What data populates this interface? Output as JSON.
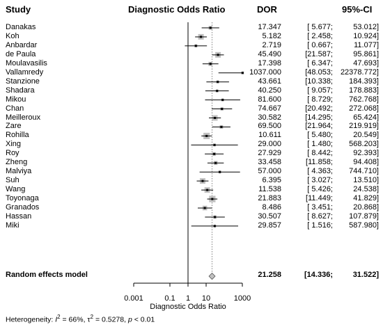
{
  "headers": {
    "study": "Study",
    "dor_title": "Diagnostic Odds Ratio",
    "dor": "DOR",
    "ci": "95%-CI"
  },
  "chart_data": {
    "type": "forest",
    "xscale": "log10",
    "xlim": [
      0.001,
      1000
    ],
    "xticks": [
      "0.001",
      "0.1",
      "1",
      "10",
      "1000"
    ],
    "xlabel": "Diagnostic Odds Ratio",
    "null_value": 1,
    "summary_value": 21.258,
    "studies": [
      {
        "name": "Danakas",
        "dor": 17.347,
        "lo": 5.677,
        "hi": 53.012,
        "dor_text": "17.347",
        "lo_text": "[ 5.677;",
        "hi_text": "53.012]"
      },
      {
        "name": "Koh",
        "dor": 5.182,
        "lo": 2.458,
        "hi": 10.924,
        "dor_text": "5.182",
        "lo_text": "[ 2.458;",
        "hi_text": "10.924]"
      },
      {
        "name": "Anbardar",
        "dor": 2.719,
        "lo": 0.667,
        "hi": 11.077,
        "dor_text": "2.719",
        "lo_text": "[ 0.667;",
        "hi_text": "11.077]"
      },
      {
        "name": "de Paula",
        "dor": 45.49,
        "lo": 21.587,
        "hi": 95.861,
        "dor_text": "45.490",
        "lo_text": "[21.587;",
        "hi_text": "95.861]"
      },
      {
        "name": "Moulavasilis",
        "dor": 17.398,
        "lo": 6.347,
        "hi": 47.693,
        "dor_text": "17.398",
        "lo_text": "[ 6.347;",
        "hi_text": "47.693]"
      },
      {
        "name": "Vallamredy",
        "dor": 1037.0,
        "lo": 48.053,
        "hi": 22378.772,
        "dor_text": "1037.000",
        "lo_text": "[48.053;",
        "hi_text": "22378.772]"
      },
      {
        "name": "Stanzione",
        "dor": 43.661,
        "lo": 10.338,
        "hi": 184.393,
        "dor_text": "43.661",
        "lo_text": "[10.338;",
        "hi_text": "184.393]"
      },
      {
        "name": "Shadara",
        "dor": 40.25,
        "lo": 9.057,
        "hi": 178.883,
        "dor_text": "40.250",
        "lo_text": "[ 9.057;",
        "hi_text": "178.883]"
      },
      {
        "name": "Mikou",
        "dor": 81.6,
        "lo": 8.729,
        "hi": 762.768,
        "dor_text": "81.600",
        "lo_text": "[ 8.729;",
        "hi_text": "762.768]"
      },
      {
        "name": "Chan",
        "dor": 74.667,
        "lo": 20.492,
        "hi": 272.068,
        "dor_text": "74.667",
        "lo_text": "[20.492;",
        "hi_text": "272.068]"
      },
      {
        "name": "Meilleroux",
        "dor": 30.582,
        "lo": 14.295,
        "hi": 65.424,
        "dor_text": "30.582",
        "lo_text": "[14.295;",
        "hi_text": "65.424]"
      },
      {
        "name": "Zare",
        "dor": 69.5,
        "lo": 21.964,
        "hi": 219.919,
        "dor_text": "69.500",
        "lo_text": "[21.964;",
        "hi_text": "219.919]"
      },
      {
        "name": "Rohilla",
        "dor": 10.611,
        "lo": 5.48,
        "hi": 20.549,
        "dor_text": "10.611",
        "lo_text": "[ 5.480;",
        "hi_text": "20.549]"
      },
      {
        "name": "Xing",
        "dor": 29.0,
        "lo": 1.48,
        "hi": 568.203,
        "dor_text": "29.000",
        "lo_text": "[ 1.480;",
        "hi_text": "568.203]"
      },
      {
        "name": "Roy",
        "dor": 27.929,
        "lo": 8.442,
        "hi": 92.393,
        "dor_text": "27.929",
        "lo_text": "[ 8.442;",
        "hi_text": "92.393]"
      },
      {
        "name": "Zheng",
        "dor": 33.458,
        "lo": 11.858,
        "hi": 94.408,
        "dor_text": "33.458",
        "lo_text": "[11.858;",
        "hi_text": "94.408]"
      },
      {
        "name": "Malviya",
        "dor": 57.0,
        "lo": 4.363,
        "hi": 744.71,
        "dor_text": "57.000",
        "lo_text": "[ 4.363;",
        "hi_text": "744.710]"
      },
      {
        "name": "Suh",
        "dor": 6.395,
        "lo": 3.027,
        "hi": 13.51,
        "dor_text": "6.395",
        "lo_text": "[ 3.027;",
        "hi_text": "13.510]"
      },
      {
        "name": "Wang",
        "dor": 11.538,
        "lo": 5.426,
        "hi": 24.538,
        "dor_text": "11.538",
        "lo_text": "[ 5.426;",
        "hi_text": "24.538]"
      },
      {
        "name": "Toyonaga",
        "dor": 21.883,
        "lo": 11.449,
        "hi": 41.829,
        "dor_text": "21.883",
        "lo_text": "[11.449;",
        "hi_text": "41.829]"
      },
      {
        "name": "Granados",
        "dor": 8.486,
        "lo": 3.451,
        "hi": 20.868,
        "dor_text": "8.486",
        "lo_text": "[ 3.451;",
        "hi_text": "20.868]"
      },
      {
        "name": "Hassan",
        "dor": 30.507,
        "lo": 8.627,
        "hi": 107.879,
        "dor_text": "30.507",
        "lo_text": "[ 8.627;",
        "hi_text": "107.879]"
      },
      {
        "name": "Miki",
        "dor": 29.857,
        "lo": 1.516,
        "hi": 587.98,
        "dor_text": "29.857",
        "lo_text": "[ 1.516;",
        "hi_text": "587.980]"
      }
    ],
    "summary": {
      "name": "Random effects model",
      "dor": 21.258,
      "lo": 14.336,
      "hi": 31.522,
      "dor_text": "21.258",
      "lo_text": "[14.336;",
      "hi_text": "31.522]"
    }
  },
  "heterogeneity": {
    "prefix": "Heterogeneity: ",
    "i2_label": "I",
    "i2_value": " = 66%, ",
    "tau2_label": "τ",
    "tau2_value": " = 0.5278, ",
    "p_label": "p",
    "p_value": " < 0.01"
  },
  "colors": {
    "box": "#c0c0c0",
    "line": "#000000",
    "dotted": "#808080",
    "diamond": "#c0c0c0"
  }
}
